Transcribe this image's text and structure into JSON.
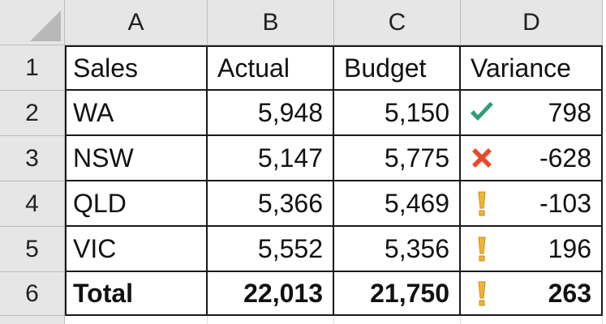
{
  "columns": [
    "A",
    "B",
    "C",
    "D"
  ],
  "rows": [
    {
      "num": "1",
      "sales": "Sales",
      "actual": "Actual",
      "budget": "Budget",
      "variance": "Variance",
      "icon": "",
      "is_header": true
    },
    {
      "num": "2",
      "sales": "WA",
      "actual": "5,948",
      "budget": "5,150",
      "variance": "798",
      "icon": "green-check-icon"
    },
    {
      "num": "3",
      "sales": "NSW",
      "actual": "5,147",
      "budget": "5,775",
      "variance": "-628",
      "icon": "red-x-icon"
    },
    {
      "num": "4",
      "sales": "QLD",
      "actual": "5,366",
      "budget": "5,469",
      "variance": "-103",
      "icon": "yellow-exclamation-icon"
    },
    {
      "num": "5",
      "sales": "VIC",
      "actual": "5,552",
      "budget": "5,356",
      "variance": "196",
      "icon": "yellow-exclamation-icon"
    },
    {
      "num": "6",
      "sales": "Total",
      "actual": "22,013",
      "budget": "21,750",
      "variance": "263",
      "icon": "yellow-exclamation-icon",
      "bold": true
    }
  ],
  "colors": {
    "check": "#2e9e78",
    "cross": "#e8492c",
    "exclamation": "#f2b531"
  }
}
